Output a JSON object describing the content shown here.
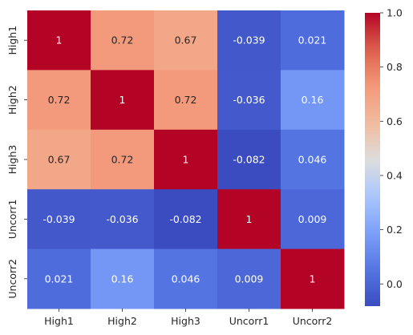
{
  "chart_data": {
    "type": "heatmap",
    "title": "",
    "xlabel": "",
    "ylabel": "",
    "x_categories": [
      "High1",
      "High2",
      "High3",
      "Uncorr1",
      "Uncorr2"
    ],
    "y_categories": [
      "High1",
      "High2",
      "High3",
      "Uncorr1",
      "Uncorr2"
    ],
    "values": [
      [
        1,
        0.72,
        0.67,
        -0.039,
        0.021
      ],
      [
        0.72,
        1,
        0.72,
        -0.036,
        0.16
      ],
      [
        0.67,
        0.72,
        1,
        -0.082,
        0.046
      ],
      [
        -0.039,
        -0.036,
        -0.082,
        1,
        0.009
      ],
      [
        0.021,
        0.16,
        0.046,
        0.009,
        1
      ]
    ],
    "annotations": [
      [
        "1",
        "0.72",
        "0.67",
        "-0.039",
        "0.021"
      ],
      [
        "0.72",
        "1",
        "0.72",
        "-0.036",
        "0.16"
      ],
      [
        "0.67",
        "0.72",
        "1",
        "-0.082",
        "0.046"
      ],
      [
        "-0.039",
        "-0.036",
        "-0.082",
        "1",
        "0.009"
      ],
      [
        "0.021",
        "0.16",
        "0.046",
        "0.009",
        "1"
      ]
    ],
    "colormap": "coolwarm",
    "vmin": -0.082,
    "vmax": 1.0,
    "colorbar": {
      "ticks": [
        0.0,
        0.2,
        0.4,
        0.6,
        0.8,
        1.0
      ],
      "tick_labels": [
        "0.0",
        "0.2",
        "0.4",
        "0.6",
        "0.8",
        "1.0"
      ]
    }
  }
}
